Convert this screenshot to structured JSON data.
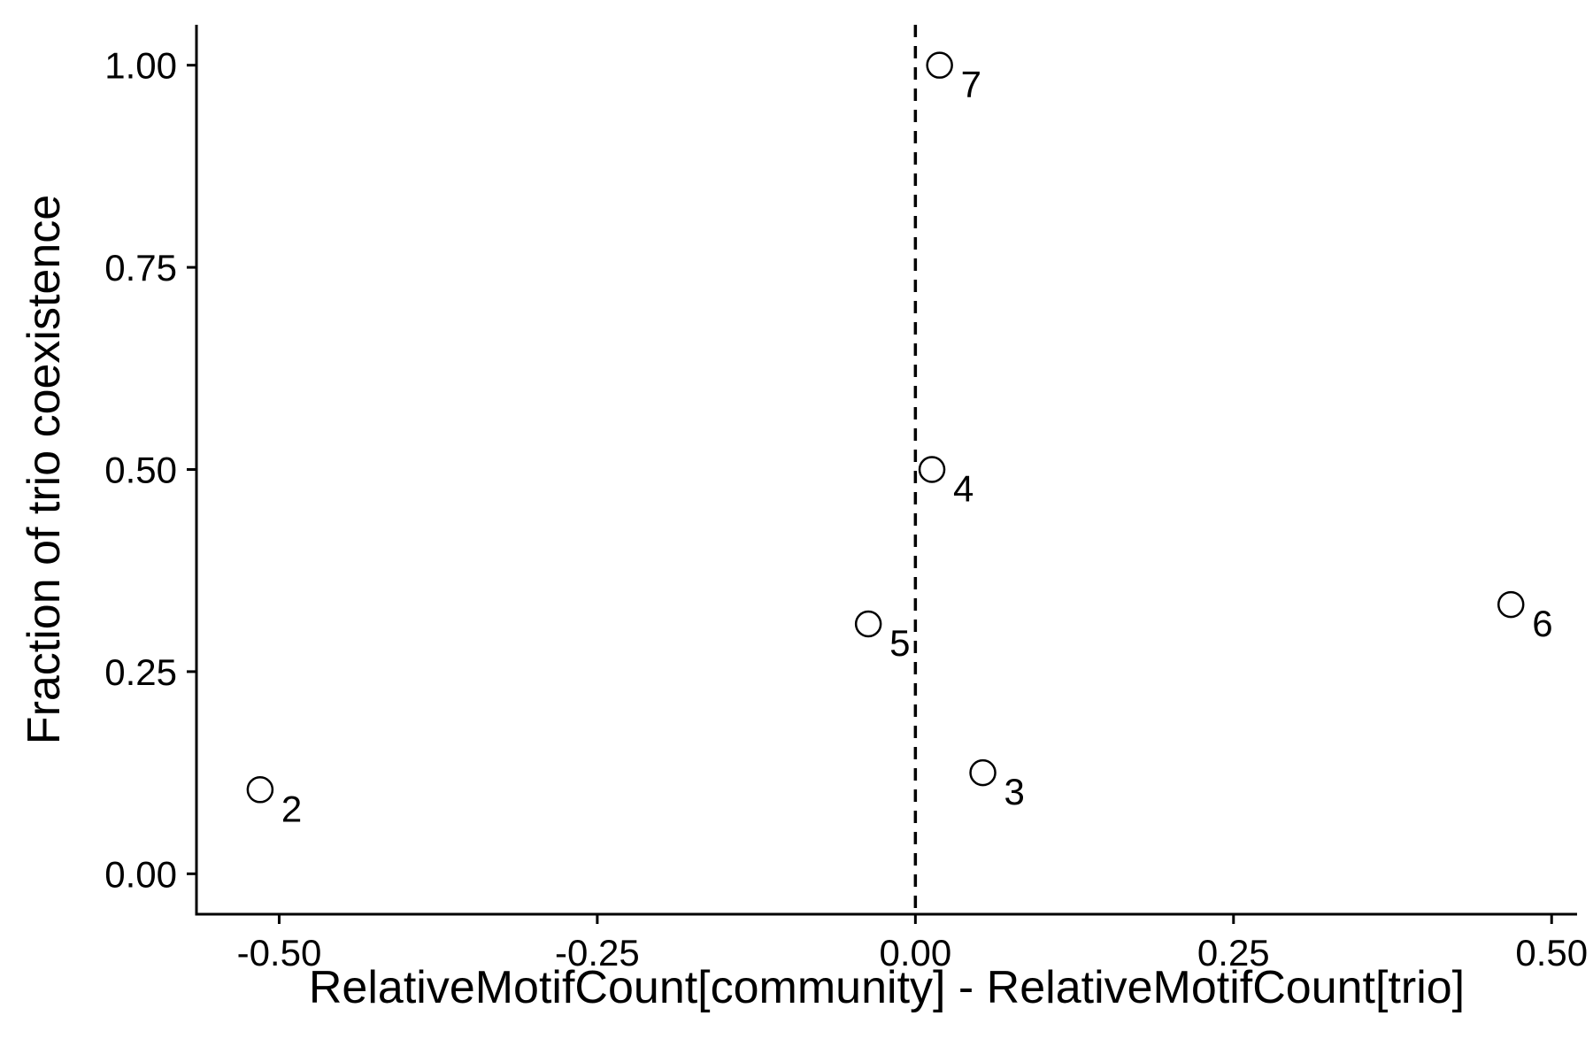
{
  "chart_data": {
    "type": "scatter",
    "title": "",
    "xlabel": "RelativeMotifCount[community] - RelativeMotifCount[trio]",
    "ylabel": "Fraction of trio coexistence",
    "xlim": [
      -0.565,
      0.52
    ],
    "ylim": [
      -0.05,
      1.05
    ],
    "x_ticks": [
      -0.5,
      -0.25,
      0.0,
      0.25,
      0.5
    ],
    "x_tick_labels": [
      "-0.50",
      "-0.25",
      "0.00",
      "0.25",
      "0.50"
    ],
    "y_ticks": [
      0.0,
      0.25,
      0.5,
      0.75,
      1.0
    ],
    "y_tick_labels": [
      "0.00",
      "0.25",
      "0.50",
      "0.75",
      "1.00"
    ],
    "reference_line": {
      "orientation": "vertical",
      "x": 0.0,
      "style": "dashed"
    },
    "grid": false,
    "legend": "none",
    "marker": "open-circle",
    "points": [
      {
        "label": "2",
        "x": -0.515,
        "y": 0.104
      },
      {
        "label": "3",
        "x": 0.053,
        "y": 0.125
      },
      {
        "label": "4",
        "x": 0.013,
        "y": 0.5
      },
      {
        "label": "5",
        "x": -0.037,
        "y": 0.309
      },
      {
        "label": "6",
        "x": 0.468,
        "y": 0.333
      },
      {
        "label": "7",
        "x": 0.019,
        "y": 1.0
      }
    ]
  }
}
